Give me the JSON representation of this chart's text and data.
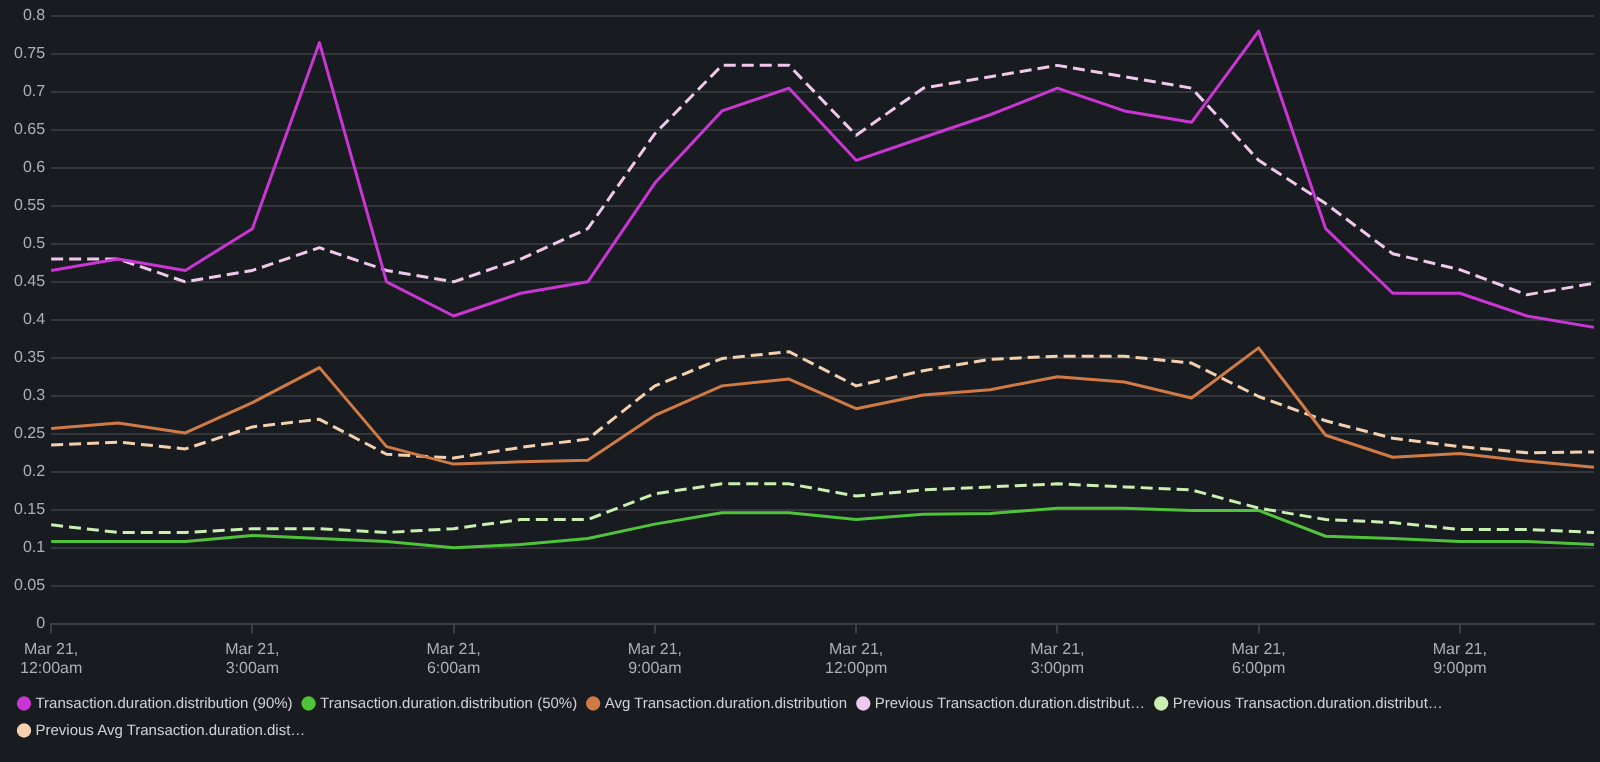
{
  "chart_data": {
    "type": "line",
    "categories": [
      "Mar 21,\n12:00am",
      null,
      null,
      "Mar 21,\n3:00am",
      null,
      null,
      "Mar 21,\n6:00am",
      null,
      null,
      "Mar 21,\n9:00am",
      null,
      null,
      "Mar 21,\n12:00pm",
      null,
      null,
      "Mar 21,\n3:00pm",
      null,
      null,
      "Mar 21,\n6:00pm",
      null,
      null,
      "Mar 21,\n9:00pm",
      null,
      null
    ],
    "ylim": [
      0,
      0.8
    ],
    "yticks": [
      0,
      0.05,
      0.1,
      0.15,
      0.2,
      0.25,
      0.3,
      0.35,
      0.4,
      0.45,
      0.5,
      0.55,
      0.6,
      0.65,
      0.7,
      0.75,
      0.8
    ],
    "grid": "y",
    "legend": "bottom",
    "series": [
      {
        "name": "Transaction.duration.distribution (90%)",
        "color": "#c936d4",
        "line_style": "solid",
        "values": [
          0.465,
          0.48,
          0.465,
          0.52,
          0.765,
          0.45,
          0.405,
          0.435,
          0.45,
          0.58,
          0.675,
          0.705,
          0.61,
          0.64,
          0.67,
          0.705,
          0.675,
          0.66,
          0.78,
          0.52,
          0.435,
          0.435,
          0.405,
          0.39
        ]
      },
      {
        "name": "Transaction.duration.distribution (50%)",
        "color": "#4fc33a",
        "line_style": "solid",
        "values": [
          0.108,
          0.108,
          0.108,
          0.116,
          0.112,
          0.108,
          0.1,
          0.104,
          0.112,
          0.131,
          0.146,
          0.146,
          0.137,
          0.144,
          0.145,
          0.152,
          0.152,
          0.149,
          0.149,
          0.115,
          0.112,
          0.108,
          0.108,
          0.104
        ]
      },
      {
        "name": "Avg Transaction.duration.distribution",
        "color": "#d07a45",
        "line_style": "solid",
        "values": [
          0.257,
          0.264,
          0.251,
          0.291,
          0.337,
          0.233,
          0.21,
          0.213,
          0.215,
          0.274,
          0.313,
          0.322,
          0.283,
          0.301,
          0.308,
          0.325,
          0.318,
          0.297,
          0.363,
          0.248,
          0.219,
          0.224,
          0.214,
          0.206
        ]
      },
      {
        "name": "Previous Transaction.duration.distribut…",
        "color": "#f0c8ec",
        "line_style": "dashed",
        "values": [
          0.48,
          0.48,
          0.45,
          0.465,
          0.495,
          0.465,
          0.45,
          0.48,
          0.52,
          0.645,
          0.735,
          0.735,
          0.643,
          0.705,
          0.72,
          0.735,
          0.72,
          0.705,
          0.61,
          0.553,
          0.487,
          0.466,
          0.433,
          0.448
        ]
      },
      {
        "name": "Previous Transaction.duration.distribut…",
        "color": "#c9efb2",
        "line_style": "dashed",
        "values": [
          0.13,
          0.12,
          0.12,
          0.125,
          0.125,
          0.12,
          0.125,
          0.137,
          0.137,
          0.171,
          0.184,
          0.184,
          0.168,
          0.176,
          0.18,
          0.184,
          0.18,
          0.176,
          0.152,
          0.137,
          0.133,
          0.124,
          0.124,
          0.12
        ]
      },
      {
        "name": "Previous Avg Transaction.duration.dist…",
        "color": "#f2d0b0",
        "line_style": "dashed",
        "values": [
          0.235,
          0.239,
          0.23,
          0.259,
          0.269,
          0.223,
          0.218,
          0.232,
          0.243,
          0.313,
          0.349,
          0.358,
          0.313,
          0.333,
          0.348,
          0.352,
          0.352,
          0.343,
          0.299,
          0.267,
          0.244,
          0.233,
          0.225,
          0.226
        ]
      }
    ]
  }
}
